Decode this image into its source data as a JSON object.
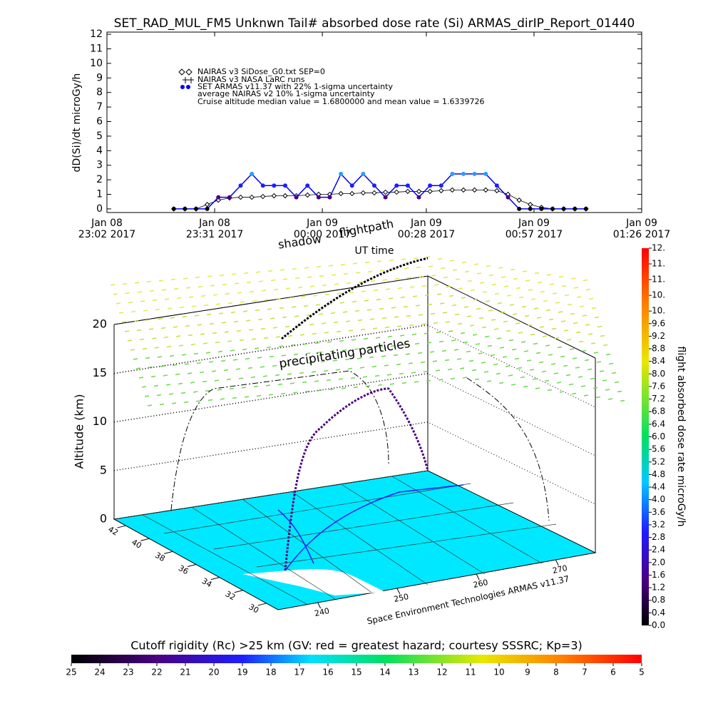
{
  "chart_data": [
    {
      "type": "line",
      "title": "SET_RAD_MUL_FM5 Unknwn Tail#  absorbed dose rate (Si) ARMAS_dirIP_Report_01440",
      "y_label": "dD(Si)/dt microGy/h",
      "x_label": "UT time",
      "x": [
        "2017-01-08T23:20",
        "2017-01-08T23:23",
        "2017-01-08T23:26",
        "2017-01-08T23:29",
        "2017-01-08T23:32",
        "2017-01-08T23:35",
        "2017-01-08T23:38",
        "2017-01-08T23:41",
        "2017-01-08T23:44",
        "2017-01-08T23:47",
        "2017-01-08T23:50",
        "2017-01-08T23:53",
        "2017-01-08T23:56",
        "2017-01-08T23:59",
        "2017-01-09T00:02",
        "2017-01-09T00:05",
        "2017-01-09T00:08",
        "2017-01-09T00:11",
        "2017-01-09T00:14",
        "2017-01-09T00:17",
        "2017-01-09T00:20",
        "2017-01-09T00:23",
        "2017-01-09T00:26",
        "2017-01-09T00:29",
        "2017-01-09T00:32",
        "2017-01-09T00:35",
        "2017-01-09T00:38",
        "2017-01-09T00:41",
        "2017-01-09T00:44",
        "2017-01-09T00:47",
        "2017-01-09T00:50",
        "2017-01-09T00:53",
        "2017-01-09T00:56",
        "2017-01-09T00:59",
        "2017-01-09T01:02",
        "2017-01-09T01:05",
        "2017-01-09T01:08",
        "2017-01-09T01:11"
      ],
      "xlim": [
        "2017-01-08T23:02",
        "2017-01-09T01:26"
      ],
      "xticks": [
        {
          "value": "2017-01-08T23:02",
          "label": [
            "Jan 08",
            "23:02 2017"
          ]
        },
        {
          "value": "2017-01-08T23:31",
          "label": [
            "Jan 08",
            "23:31 2017"
          ]
        },
        {
          "value": "2017-01-09T00:00",
          "label": [
            "Jan 09",
            "00:00 2017"
          ]
        },
        {
          "value": "2017-01-09T00:28",
          "label": [
            "Jan 09",
            "00:28 2017"
          ]
        },
        {
          "value": "2017-01-09T00:57",
          "label": [
            "Jan 09",
            "00:57 2017"
          ]
        },
        {
          "value": "2017-01-09T01:26",
          "label": [
            "Jan 09",
            "01:26 2017"
          ]
        }
      ],
      "ylim": [
        -0.25,
        12.15
      ],
      "yticks": [
        0,
        1,
        2,
        3,
        4,
        5,
        6,
        7,
        8,
        9,
        10,
        11,
        12
      ],
      "series": [
        {
          "name": "NAIRAS v3 SiDose_G0.txt SEP=0",
          "color": "#000000",
          "marker": "diamond",
          "values": [
            0,
            0,
            0,
            0.3,
            0.6,
            0.75,
            0.8,
            0.8,
            0.85,
            0.9,
            0.9,
            0.9,
            0.95,
            1.0,
            1.0,
            1.05,
            1.05,
            1.1,
            1.1,
            1.15,
            1.15,
            1.2,
            1.2,
            1.2,
            1.25,
            1.3,
            1.3,
            1.3,
            1.3,
            1.25,
            1.0,
            0.6,
            0.3,
            0.1,
            0,
            0,
            0,
            0
          ]
        },
        {
          "name": "SET ARMAS v11.37 with 22% 1-sigma uncertainty",
          "color": "#0000ff",
          "marker": "dot",
          "values": [
            0,
            0,
            0,
            0,
            0.8,
            0.8,
            1.6,
            2.4,
            1.6,
            1.6,
            1.6,
            0.8,
            1.6,
            0.8,
            0.8,
            2.4,
            1.6,
            2.4,
            1.6,
            0.8,
            1.6,
            1.6,
            0.8,
            1.6,
            1.6,
            2.4,
            2.4,
            2.4,
            2.4,
            1.6,
            0.8,
            0,
            0,
            0,
            0,
            0,
            0,
            0
          ]
        }
      ],
      "legend_notes": [
        "NAIRAS v3 NASA LaRC runs",
        "average NAIRAS v2 10% 1-sigma uncertainty"
      ],
      "annotation": "Cruise altitude median value = 1.6800000 and mean value = 1.6339726"
    },
    {
      "type": "surface3d",
      "z_label": "Altitude (km)",
      "zlim": [
        0,
        20
      ],
      "zticks": [
        0,
        5,
        10,
        15,
        20
      ],
      "latlim": [
        29,
        43
      ],
      "lat_ticks": [
        42,
        40,
        38,
        36,
        34,
        32,
        30
      ],
      "lonlim": [
        235,
        275
      ],
      "lon_ticks": [
        240,
        250,
        260,
        270
      ],
      "annotations": [
        "shadow",
        "flightpath",
        "precipitating particles"
      ],
      "credit": "Space Environment Technologies ARMAS v11.37"
    },
    {
      "type": "colorbar",
      "orientation": "vertical",
      "label": "flight absorbed dose rate microGy/h",
      "lim": [
        0,
        12
      ],
      "ticks": [
        {
          "value": 0,
          "label": "0.0"
        },
        0.4,
        0.8,
        1.2,
        1.6,
        {
          "value": 2,
          "label": "2.0"
        },
        2.4,
        2.8,
        3.2,
        3.6,
        {
          "value": 4,
          "label": "4.0"
        },
        4.4,
        4.8,
        5.2,
        5.6,
        {
          "value": 6,
          "label": "6.0"
        },
        6.4,
        6.8,
        7.2,
        7.6,
        {
          "value": 8,
          "label": "8.0"
        },
        8.4,
        8.8,
        9.2,
        9.6,
        {
          "value": 10,
          "label": "10."
        },
        {
          "value": 10.5,
          "label": "10."
        },
        {
          "value": 11,
          "label": "11."
        },
        {
          "value": 11.5,
          "label": "11."
        },
        {
          "value": 12,
          "label": "12."
        }
      ]
    },
    {
      "type": "colorbar",
      "orientation": "horizontal",
      "title": "Cutoff rigidity (Rc) >25 km (GV: red = greatest hazard; courtesy SSSRC; Kp=3)",
      "lim": [
        25,
        5
      ],
      "ticks": [
        25,
        24,
        23,
        22,
        21,
        20,
        19,
        18,
        17,
        16,
        15,
        14,
        13,
        12,
        11,
        10,
        9,
        8,
        7,
        6,
        5
      ]
    }
  ]
}
